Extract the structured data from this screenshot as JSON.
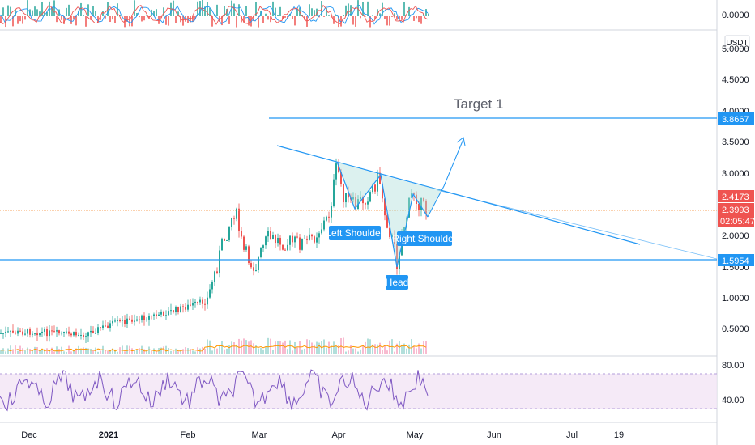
{
  "chart_data": {
    "type": "candlestick",
    "currency": "USDT",
    "price_axis": {
      "ticks": [
        "5.0000",
        "4.5000",
        "4.0000",
        "3.5000",
        "3.0000",
        "2.0000",
        "1.5000",
        "1.0000",
        "0.5000"
      ],
      "ylim": [
        0.2,
        5.2
      ]
    },
    "time_axis": {
      "labels": [
        "Dec",
        "2021",
        "Feb",
        "Mar",
        "Apr",
        "May",
        "Jun",
        "Jul",
        "19"
      ],
      "bold": [
        "2021"
      ]
    },
    "price_tags": [
      {
        "value": "3.8667",
        "color": "#2196f3"
      },
      {
        "value": "2.4173",
        "color": "#ef5350"
      },
      {
        "value": "2.3993",
        "color": "#ef5350"
      },
      {
        "value": "02:05:47",
        "color": "#ef5350"
      },
      {
        "value": "1.5954",
        "color": "#2196f3"
      }
    ],
    "horizontal_lines": [
      {
        "price": 3.8667,
        "color": "#2196f3"
      },
      {
        "price": 1.5954,
        "color": "#2196f3"
      },
      {
        "price": 2.3993,
        "color": "#f7a35c"
      }
    ],
    "annotations": {
      "target": "Target 1",
      "left_shoulder": "Left Shoulder",
      "head": "Head",
      "right_shoulder": "Right Shoulder"
    },
    "oscillator_top": {
      "ticks": [
        "0.0000"
      ]
    },
    "rsi": {
      "ticks": [
        "80.00",
        "40.00"
      ],
      "band": [
        30,
        70
      ]
    },
    "colors": {
      "up": "#26a69a",
      "down": "#ef5350",
      "drawing": "#2196f3",
      "rsi_line": "#7e57c2",
      "band_fill": "#f3e5f5"
    }
  }
}
